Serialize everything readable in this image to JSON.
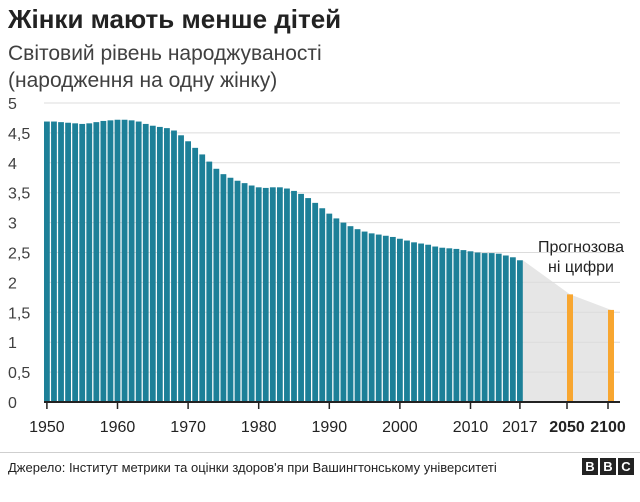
{
  "header": {
    "title": "Жінки мають менше дітей",
    "subtitle_line1": "Світовий рівень народжуваності",
    "subtitle_line2": "(народження на одну жінку)"
  },
  "footer": {
    "source": "Джерело: Інститут метрики та оцінки здоров'я при Вашингтонському університеті",
    "logo_letters": [
      "B",
      "B",
      "C"
    ]
  },
  "colors": {
    "historical": "#1d8098",
    "forecast": "#f8a630",
    "forecast_area": "#e6e6e6",
    "grid": "#dcdcdc",
    "axis": "#222222"
  },
  "chart_data": {
    "type": "bar",
    "title": "Жінки мають менше дітей",
    "ylabel": "Світовий рівень народжуваності (народження на одну жінку)",
    "ylim": [
      0,
      5
    ],
    "yticks": [
      0,
      0.5,
      1,
      1.5,
      2,
      2.5,
      3,
      3.5,
      4,
      4.5,
      5
    ],
    "ytick_labels": [
      "0",
      "0,5",
      "1",
      "1,5",
      "2",
      "2,5",
      "3",
      "3,5",
      "4",
      "4,5",
      "5"
    ],
    "xticks": [
      1950,
      1960,
      1970,
      1980,
      1990,
      2000,
      2010,
      2017,
      2050,
      2100
    ],
    "xtick_labels": [
      "1950",
      "1960",
      "1970",
      "1980",
      "1990",
      "2000",
      "2010",
      "2017",
      "2050",
      "2100"
    ],
    "grid": true,
    "series": [
      {
        "x": [
          1950,
          1951,
          1952,
          1953,
          1954,
          1955,
          1956,
          1957,
          1958,
          1959,
          1960,
          1961,
          1962,
          1963,
          1964,
          1965,
          1966,
          1967,
          1968,
          1969,
          1970,
          1971,
          1972,
          1973,
          1974,
          1975,
          1976,
          1977,
          1978,
          1979,
          1980,
          1981,
          1982,
          1983,
          1984,
          1985,
          1986,
          1987,
          1988,
          1989,
          1990,
          1991,
          1992,
          1993,
          1994,
          1995,
          1996,
          1997,
          1998,
          1999,
          2000,
          2001,
          2002,
          2003,
          2004,
          2005,
          2006,
          2007,
          2008,
          2009,
          2010,
          2011,
          2012,
          2013,
          2014,
          2015,
          2016,
          2017
        ],
        "values": [
          4.69,
          4.69,
          4.68,
          4.67,
          4.66,
          4.65,
          4.66,
          4.68,
          4.7,
          4.71,
          4.72,
          4.72,
          4.71,
          4.69,
          4.65,
          4.62,
          4.6,
          4.58,
          4.54,
          4.46,
          4.36,
          4.25,
          4.14,
          4.02,
          3.9,
          3.81,
          3.75,
          3.7,
          3.66,
          3.62,
          3.59,
          3.58,
          3.59,
          3.59,
          3.57,
          3.53,
          3.48,
          3.41,
          3.33,
          3.24,
          3.15,
          3.07,
          3.0,
          2.94,
          2.89,
          2.85,
          2.82,
          2.8,
          2.78,
          2.76,
          2.73,
          2.7,
          2.67,
          2.65,
          2.63,
          2.6,
          2.58,
          2.57,
          2.56,
          2.54,
          2.52,
          2.5,
          2.49,
          2.49,
          2.48,
          2.45,
          2.42,
          2.37
        ]
      },
      {
        "annotation": "Прогнозова ні цифри",
        "x": [
          2050,
          2100
        ],
        "values": [
          1.8,
          1.54
        ]
      }
    ]
  }
}
